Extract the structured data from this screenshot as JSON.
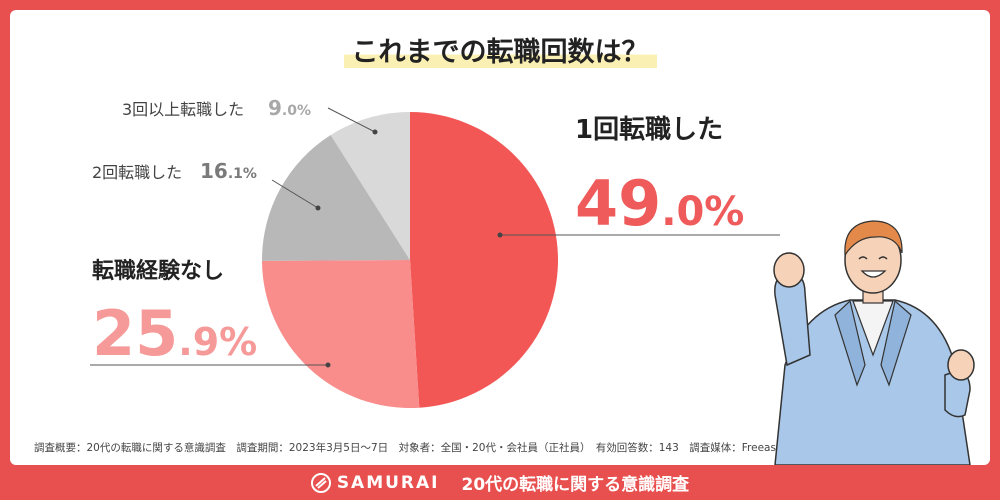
{
  "chart_data": {
    "type": "pie",
    "title": "これまでの転職回数は？",
    "start_angle": "top",
    "direction": "clockwise",
    "slices": [
      {
        "label": "1回転職した",
        "value": 49.0,
        "int": "49",
        "dec": ".0%",
        "color": "#f25756"
      },
      {
        "label": "転職経験なし",
        "value": 25.9,
        "int": "25",
        "dec": ".9%",
        "color": "#f88d8b"
      },
      {
        "label": "2回転職した",
        "value": 16.1,
        "int": "16",
        "dec": ".1%",
        "color": "#b8b8b8"
      },
      {
        "label": "3回以上転職した",
        "value": 9.0,
        "int": "9",
        "dec": ".0%",
        "color": "#d9d9d9"
      }
    ],
    "value_colors": {
      "main": "#ef5a5a",
      "second": "#f59a98",
      "gray": "#7a7a7a",
      "gray_light": "#a8a8a8"
    }
  },
  "footer": {
    "survey_note": "調査概要：20代の転職に関する意識調査　調査期間：2023年3月5日〜7日　対象者：全国・20代・会社員（正社員）　有効回答数：143　調査媒体：Freeasy"
  },
  "bottom_bar": {
    "brand": "SAMURAI",
    "brand_icon": "samurai-logo-icon",
    "title": "20代の転職に関する意識調査"
  },
  "illustration": {
    "icon": "cheering-businessman-icon",
    "suit_color": "#a9c7e8",
    "hair_color": "#e38a4a"
  }
}
